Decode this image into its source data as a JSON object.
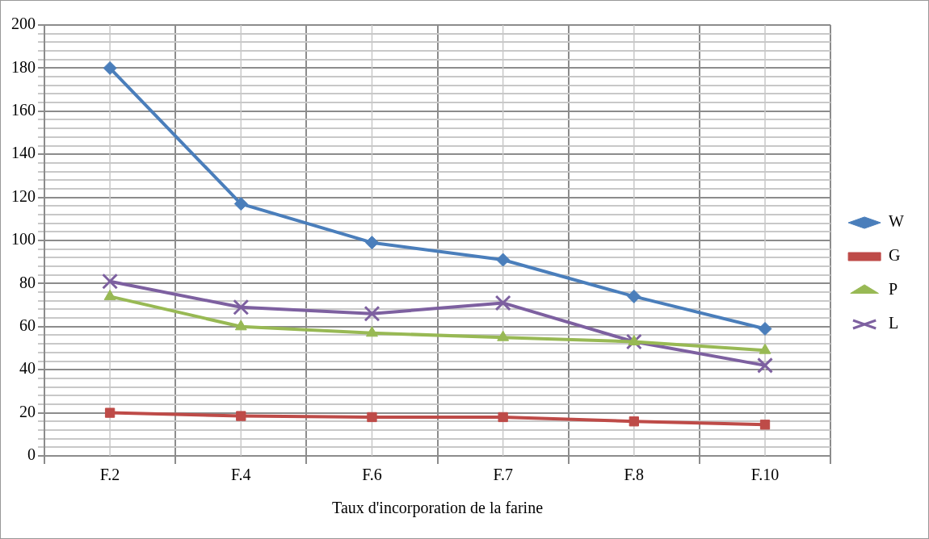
{
  "chart_data": {
    "type": "line",
    "xlabel": "Taux d'incorporation de la farine",
    "categories": [
      "F.2",
      "F.4",
      "F.6",
      "F.7",
      "F.8",
      "F.10"
    ],
    "series": [
      {
        "name": "W",
        "color": "#4a7ebb",
        "marker": "diamond",
        "values": [
          180,
          117,
          99,
          91,
          74,
          59
        ]
      },
      {
        "name": "G",
        "color": "#be4b48",
        "marker": "square",
        "values": [
          20,
          18.5,
          18,
          18,
          16,
          14.5
        ]
      },
      {
        "name": "P",
        "color": "#98b954",
        "marker": "triangle",
        "values": [
          74,
          60,
          57,
          55,
          53,
          49
        ]
      },
      {
        "name": "L",
        "color": "#7d60a0",
        "marker": "cross",
        "values": [
          81,
          69,
          66,
          71,
          53,
          42
        ]
      }
    ],
    "ylim": [
      0,
      200
    ],
    "yticks": [
      0,
      {
        "value": 4,
        "label": null
      },
      {
        "value": 8,
        "label": null
      },
      {
        "value": 12,
        "label": null
      },
      {
        "value": 16,
        "label": null
      },
      20,
      {
        "value": 24,
        "label": null
      },
      {
        "value": 28,
        "label": null
      },
      {
        "value": 32,
        "label": null
      },
      {
        "value": 36,
        "label": null
      },
      40,
      {
        "value": 44,
        "label": null
      },
      {
        "value": 48,
        "label": null
      },
      {
        "value": 52,
        "label": null
      },
      {
        "value": 56,
        "label": null
      },
      60,
      {
        "value": 64,
        "label": null
      },
      {
        "value": 68,
        "label": null
      },
      {
        "value": 72,
        "label": null
      },
      {
        "value": 76,
        "label": null
      },
      80,
      {
        "value": 84,
        "label": null
      },
      {
        "value": 88,
        "label": null
      },
      {
        "value": 92,
        "label": null
      },
      {
        "value": 96,
        "label": null
      },
      100,
      {
        "value": 104,
        "label": null
      },
      {
        "value": 108,
        "label": null
      },
      {
        "value": 112,
        "label": null
      },
      {
        "value": 116,
        "label": null
      },
      120,
      {
        "value": 124,
        "label": null
      },
      {
        "value": 128,
        "label": null
      },
      {
        "value": 132,
        "label": null
      },
      {
        "value": 136,
        "label": null
      },
      140,
      {
        "value": 144,
        "label": null
      },
      {
        "value": 148,
        "label": null
      },
      {
        "value": 152,
        "label": null
      },
      {
        "value": 156,
        "label": null
      },
      160,
      {
        "value": 164,
        "label": null
      },
      {
        "value": 168,
        "label": null
      },
      {
        "value": 172,
        "label": null
      },
      {
        "value": 176,
        "label": null
      },
      180,
      {
        "value": 184,
        "label": null
      },
      {
        "value": 188,
        "label": null
      },
      {
        "value": 192,
        "label": null
      },
      {
        "value": 196,
        "label": null
      },
      200
    ],
    "grid": true,
    "legend": "right",
    "line_style": "solid"
  }
}
